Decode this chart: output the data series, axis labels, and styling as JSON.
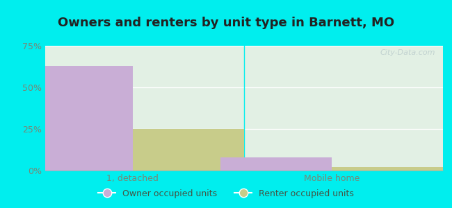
{
  "title": "Owners and renters by unit type in Barnett, MO",
  "categories": [
    "1, detached",
    "Mobile home"
  ],
  "owner_values": [
    63.0,
    8.0
  ],
  "renter_values": [
    25.0,
    2.0
  ],
  "owner_color": "#c9aed6",
  "renter_color": "#c8cc8a",
  "ylim": [
    0,
    75
  ],
  "yticks": [
    0,
    25,
    50,
    75
  ],
  "ytick_labels": [
    "0%",
    "25%",
    "50%",
    "75%"
  ],
  "outer_background": "#00eeee",
  "plot_bg_left": "#ddf0dc",
  "plot_bg_right": "#eef8f4",
  "bar_width": 0.28,
  "group_positions": [
    0.22,
    0.72
  ],
  "legend_labels": [
    "Owner occupied units",
    "Renter occupied units"
  ],
  "watermark": "City-Data.com",
  "title_fontsize": 13,
  "axis_label_fontsize": 9,
  "legend_fontsize": 9,
  "tick_color": "#778877",
  "title_color": "#222222"
}
